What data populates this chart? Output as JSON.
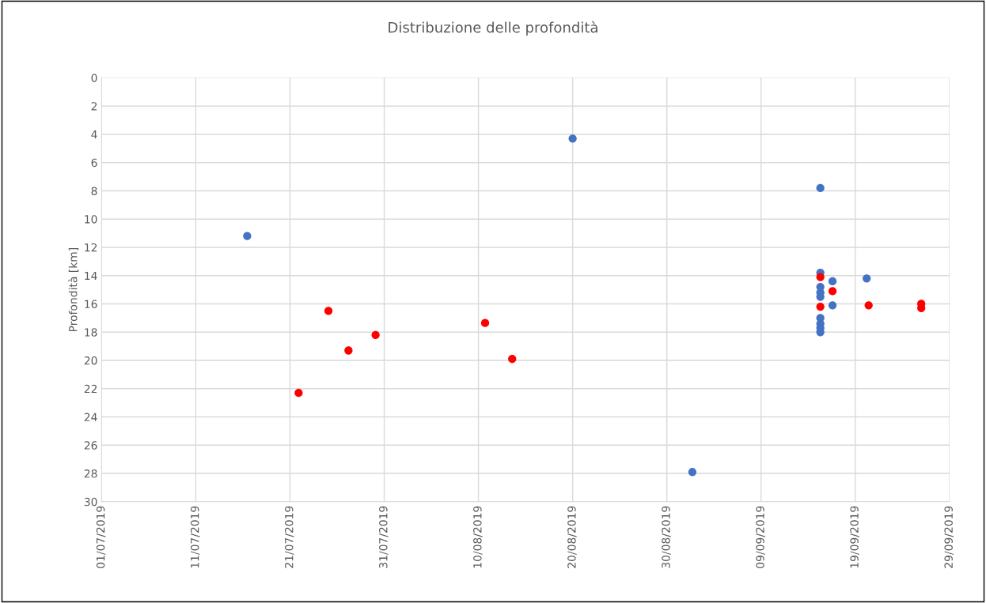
{
  "chart_data": {
    "type": "scatter",
    "title": "Distribuzione delle profondità",
    "ylabel": "Profondità [km]",
    "series": [
      {
        "color": "#4472c4",
        "x": [
          "2019-07-16T11:00",
          "2019-08-20T00:00",
          "2019-09-01T17:00",
          "2019-09-15T07:00",
          "2019-09-15T07:00",
          "2019-09-15T07:00",
          "2019-09-15T07:00",
          "2019-09-15T07:00",
          "2019-09-15T07:00",
          "2019-09-15T07:00",
          "2019-09-15T07:00",
          "2019-09-15T07:00",
          "2019-09-16T14:00",
          "2019-09-16T14:00",
          "2019-09-20T05:00"
        ],
        "values": [
          11.2,
          4.3,
          27.9,
          7.8,
          13.8,
          14.8,
          15.2,
          15.5,
          17.0,
          17.4,
          17.7,
          18.0,
          14.4,
          16.1,
          14.2
        ]
      },
      {
        "color": "#ff0000",
        "x": [
          "2019-07-21T22:00",
          "2019-07-25T02:00",
          "2019-07-27T05:00",
          "2019-07-30T02:00",
          "2019-08-10T17:00",
          "2019-08-13T14:00",
          "2019-09-15T07:00",
          "2019-09-15T07:00",
          "2019-09-16T14:00",
          "2019-09-20T10:00",
          "2019-09-26T00:00",
          "2019-09-26T00:00"
        ],
        "values": [
          22.3,
          16.5,
          19.3,
          18.2,
          17.35,
          19.9,
          14.1,
          16.2,
          15.1,
          16.1,
          16.0,
          16.3
        ]
      }
    ],
    "xlim": [
      "2019-07-01",
      "2019-09-29"
    ],
    "xticks": [
      {
        "value": "2019-07-01",
        "label": "01/07/2019"
      },
      {
        "value": "2019-07-11",
        "label": "11/07/2019"
      },
      {
        "value": "2019-07-21",
        "label": "21/07/2019"
      },
      {
        "value": "2019-07-31",
        "label": "31/07/2019"
      },
      {
        "value": "2019-08-10",
        "label": "10/08/2019"
      },
      {
        "value": "2019-08-20",
        "label": "20/08/2019"
      },
      {
        "value": "2019-08-30",
        "label": "30/08/2019"
      },
      {
        "value": "2019-09-09",
        "label": "09/09/2019"
      },
      {
        "value": "2019-09-19",
        "label": "19/09/2019"
      },
      {
        "value": "2019-09-29",
        "label": "29/09/2019"
      }
    ],
    "ylim": [
      30,
      0
    ],
    "yticks": [
      0,
      2,
      4,
      6,
      8,
      10,
      12,
      14,
      16,
      18,
      20,
      22,
      24,
      26,
      28,
      30
    ],
    "grid": true,
    "marker": "circle",
    "legend": false
  }
}
